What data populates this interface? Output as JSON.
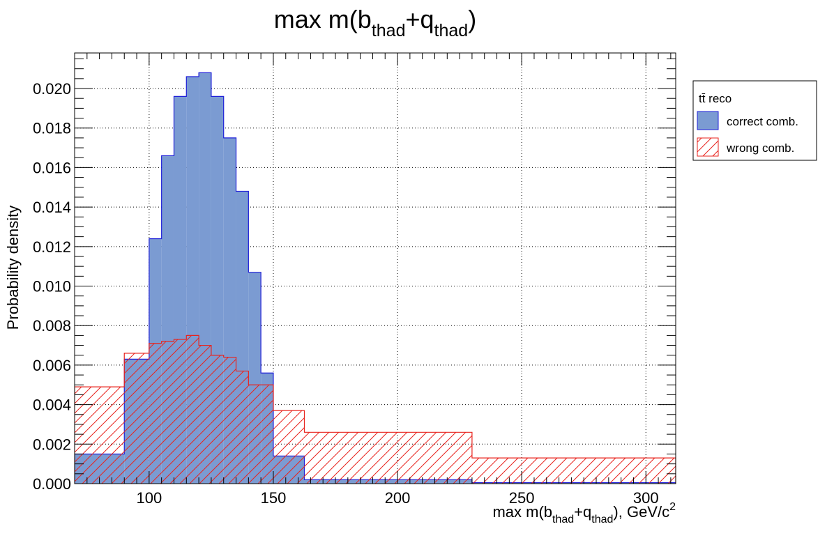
{
  "chart_data": {
    "type": "bar",
    "title": {
      "main": "max m(b",
      "sub1": "thad",
      "plus": "+q",
      "sub2": "thad",
      "close": ")"
    },
    "xlabel": {
      "a": "max m(b",
      "sub1": "thad",
      "b": "+q",
      "sub2": "thad",
      "c": "), GeV/c",
      "sup": "2"
    },
    "ylabel": "Probability density",
    "xlim": [
      70,
      312
    ],
    "ylim": [
      0,
      0.0218
    ],
    "x_ticks": [
      100,
      150,
      200,
      250,
      300
    ],
    "y_ticks": [
      0,
      0.002,
      0.004,
      0.006,
      0.008,
      0.01,
      0.012,
      0.014,
      0.016,
      0.018,
      0.02
    ],
    "y_tick_labels": [
      "0.000",
      "0.002",
      "0.004",
      "0.006",
      "0.008",
      "0.010",
      "0.012",
      "0.014",
      "0.016",
      "0.018",
      "0.020"
    ],
    "grid": true,
    "legend": {
      "header": "tt̄ reco",
      "placement": "outside-right"
    },
    "bin_edges": [
      70,
      90,
      100,
      105,
      110,
      115,
      120,
      125,
      130,
      135,
      140,
      145,
      150,
      162.5,
      187.5,
      230,
      312
    ],
    "series": [
      {
        "name": "correct comb.",
        "style": "filled",
        "fill": "#7b9bd2",
        "line": "#1f1fd8",
        "values": [
          0.0015,
          0.0063,
          0.0124,
          0.0166,
          0.0196,
          0.0206,
          0.0208,
          0.0196,
          0.0175,
          0.0148,
          0.0107,
          0.0056,
          0.0014,
          0.0002,
          0.0002,
          5e-05
        ]
      },
      {
        "name": "wrong comb.",
        "style": "hatched",
        "fill": "none",
        "line": "#e8231d",
        "values": [
          0.0049,
          0.0066,
          0.0071,
          0.0072,
          0.0073,
          0.0075,
          0.007,
          0.0065,
          0.0064,
          0.0057,
          0.005,
          0.005,
          0.0037,
          0.0026,
          0.0026,
          0.0013
        ]
      }
    ]
  }
}
